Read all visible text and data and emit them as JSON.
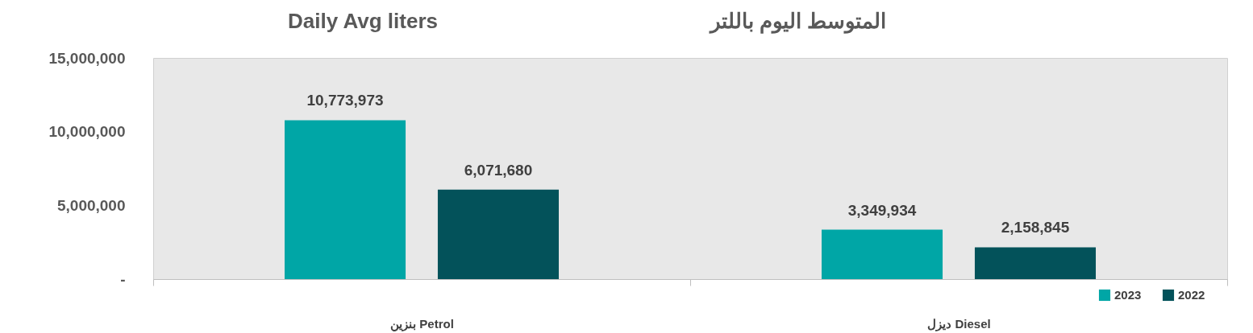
{
  "chart_data": {
    "type": "bar",
    "title": "Daily Avg liters",
    "subtitle": "المتوسط اليوم باللتر",
    "categories": [
      "بنزين Petrol",
      "ديزل Diesel"
    ],
    "series": [
      {
        "name": "2023",
        "color": "#00a6a6",
        "values": [
          10773973,
          3349934
        ],
        "value_labels": [
          "10,773,973",
          "3,349,934"
        ]
      },
      {
        "name": "2022",
        "color": "#03525a",
        "values": [
          6071680,
          2158845
        ],
        "value_labels": [
          "6,071,680",
          "2,158,845"
        ]
      }
    ],
    "ylim": [
      0,
      15000000
    ],
    "yticks": [
      {
        "value": 0,
        "label": "-"
      },
      {
        "value": 5000000,
        "label": "5,000,000"
      },
      {
        "value": 10000000,
        "label": "10,000,000"
      },
      {
        "value": 15000000,
        "label": "15,000,000"
      }
    ],
    "grid": false,
    "legend": "bottom right"
  }
}
